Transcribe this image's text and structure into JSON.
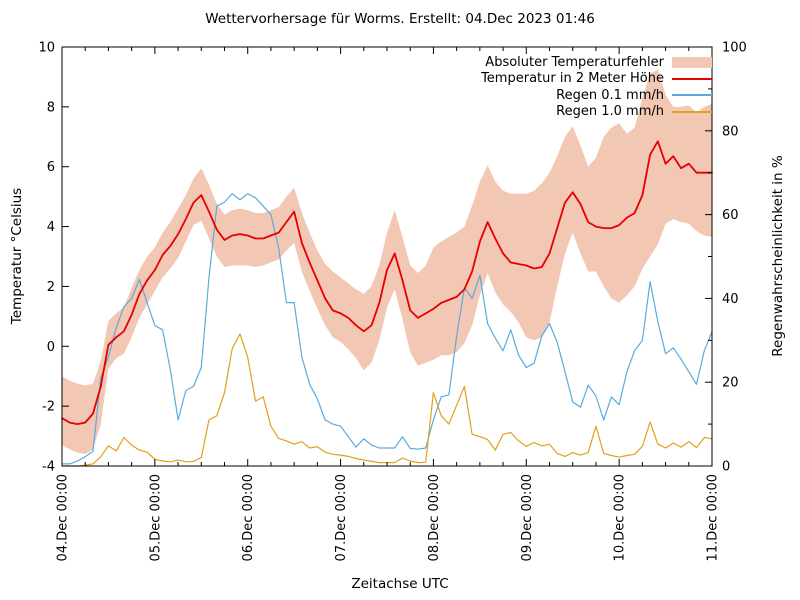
{
  "chart_data": {
    "type": "line",
    "title": "Wettervorhersage für Worms. Erstellt: 04.Dec 2023 01:46",
    "xlabel": "Zeitachse UTC",
    "ylabel": "Temperatur °Celsius",
    "y2label": "Regenwahrscheinlichkeit in %",
    "legend_position": "top-right-inside",
    "grid": "off",
    "x_range_hours": [
      0,
      168
    ],
    "x_major_tick_hours": 24,
    "x_minor_tick_hours": 6,
    "x_tick_labels": [
      "04.Dec 00:00",
      "05.Dec 00:00",
      "06.Dec 00:00",
      "07.Dec 00:00",
      "08.Dec 00:00",
      "09.Dec 00:00",
      "10.Dec 00:00",
      "11.Dec 00:00"
    ],
    "y_range": [
      -4,
      10
    ],
    "y_ticks": [
      -4,
      -2,
      0,
      2,
      4,
      6,
      8,
      10
    ],
    "y2_range": [
      0,
      100
    ],
    "y2_ticks": [
      0,
      20,
      40,
      60,
      80,
      100
    ],
    "y2_minor_tick": 10,
    "sample_step_hours": 2,
    "series": [
      {
        "name": "Absoluter Temperaturfehler",
        "id": "temperature-error-band",
        "type": "band",
        "axis": "y1",
        "color": "#f2c7b3",
        "upper": [
          -1.0,
          -1.15,
          -1.25,
          -1.3,
          -1.25,
          -0.5,
          0.85,
          1.1,
          1.3,
          1.95,
          2.55,
          3.0,
          3.3,
          3.8,
          4.15,
          4.6,
          5.05,
          5.6,
          5.95,
          5.4,
          4.75,
          4.4,
          4.55,
          4.6,
          4.55,
          4.45,
          4.45,
          4.55,
          4.65,
          5.0,
          5.3,
          4.45,
          3.8,
          3.2,
          2.75,
          2.5,
          2.3,
          2.1,
          1.9,
          1.75,
          2.0,
          2.7,
          3.8,
          4.55,
          3.65,
          2.7,
          2.45,
          2.7,
          3.3,
          3.5,
          3.65,
          3.8,
          4.0,
          4.7,
          5.5,
          6.05,
          5.5,
          5.2,
          5.1,
          5.1,
          5.1,
          5.2,
          5.45,
          5.8,
          6.35,
          7.0,
          7.35,
          6.7,
          6.0,
          6.3,
          7.0,
          7.3,
          7.45,
          7.1,
          7.3,
          8.3,
          9.1,
          9.25,
          8.4,
          8.0,
          8.0,
          8.05,
          7.8,
          8.0,
          8.1
        ],
        "lower": [
          -3.3,
          -3.45,
          -3.55,
          -3.6,
          -3.45,
          -2.6,
          -0.75,
          -0.4,
          -0.25,
          0.3,
          0.95,
          1.4,
          1.85,
          2.3,
          2.6,
          2.95,
          3.5,
          4.05,
          4.2,
          3.6,
          3.0,
          2.65,
          2.7,
          2.7,
          2.7,
          2.65,
          2.7,
          2.8,
          2.9,
          3.2,
          3.45,
          2.5,
          1.85,
          1.25,
          0.7,
          0.3,
          0.15,
          -0.1,
          -0.4,
          -0.8,
          -0.55,
          0.2,
          1.3,
          1.9,
          0.9,
          -0.2,
          -0.65,
          -0.55,
          -0.45,
          -0.3,
          -0.3,
          -0.2,
          0.1,
          0.7,
          1.7,
          2.45,
          1.8,
          1.4,
          1.15,
          0.8,
          0.3,
          0.2,
          0.3,
          0.8,
          2.0,
          3.1,
          3.8,
          3.1,
          2.5,
          2.5,
          2.0,
          1.6,
          1.45,
          1.7,
          2.0,
          2.6,
          3.0,
          3.4,
          4.1,
          4.25,
          4.15,
          4.1,
          3.85,
          3.7,
          3.65
        ]
      },
      {
        "name": "Temperatur in 2 Meter Höhe",
        "id": "temperature-line",
        "type": "line",
        "axis": "y1",
        "color": "#e60000",
        "line_width": 1.8,
        "values": [
          -2.4,
          -2.55,
          -2.6,
          -2.55,
          -2.25,
          -1.35,
          0.05,
          0.3,
          0.5,
          1.05,
          1.75,
          2.2,
          2.55,
          3.05,
          3.35,
          3.75,
          4.25,
          4.8,
          5.05,
          4.5,
          3.9,
          3.55,
          3.7,
          3.75,
          3.7,
          3.6,
          3.6,
          3.7,
          3.8,
          4.15,
          4.5,
          3.45,
          2.8,
          2.2,
          1.6,
          1.2,
          1.1,
          0.95,
          0.7,
          0.5,
          0.7,
          1.45,
          2.55,
          3.1,
          2.2,
          1.2,
          0.95,
          1.1,
          1.25,
          1.45,
          1.55,
          1.65,
          1.9,
          2.5,
          3.5,
          4.15,
          3.6,
          3.1,
          2.8,
          2.75,
          2.7,
          2.6,
          2.65,
          3.1,
          3.95,
          4.8,
          5.15,
          4.75,
          4.15,
          4.0,
          3.95,
          3.95,
          4.05,
          4.3,
          4.45,
          5.05,
          6.4,
          6.85,
          6.1,
          6.35,
          5.95,
          6.1,
          5.8,
          5.8,
          5.8
        ]
      },
      {
        "name": "Regen 0.1 mm/h",
        "id": "rain-01-line",
        "type": "line",
        "axis": "y2",
        "color": "#5aabdc",
        "line_width": 1.2,
        "values": [
          0.5,
          0.5,
          1.2,
          2.2,
          3.5,
          21,
          26,
          33,
          38,
          40,
          44.5,
          39,
          33.5,
          32.5,
          23,
          11,
          18,
          19,
          23.5,
          45,
          62,
          63,
          65,
          63.5,
          65,
          64,
          62,
          60,
          52,
          39,
          39,
          26,
          19.5,
          16,
          11,
          10,
          9.5,
          7,
          4.5,
          6.5,
          5,
          4.3,
          4.3,
          4.3,
          7,
          4.2,
          4,
          4.3,
          11,
          16.5,
          17,
          31,
          42.5,
          40,
          45.5,
          34,
          30.5,
          27.5,
          32.5,
          26.5,
          23.5,
          24.5,
          31,
          34,
          29.5,
          22.5,
          15.3,
          14,
          19.3,
          16.7,
          11,
          16.5,
          14.6,
          22.5,
          27.5,
          30,
          44,
          34.5,
          26.8,
          28.2,
          25.5,
          22.5,
          19.5,
          27.5,
          32
        ]
      },
      {
        "name": "Regen 1.0 mm/h",
        "id": "rain-10-line",
        "type": "line",
        "axis": "y2",
        "color": "#e0a11c",
        "line_width": 1.2,
        "values": [
          0,
          0,
          0,
          0.2,
          0.5,
          2.2,
          4.8,
          3.6,
          6.8,
          5,
          3.8,
          3.3,
          1.6,
          1.2,
          1,
          1.4,
          1,
          1.1,
          2,
          11,
          12,
          17.5,
          28,
          31.5,
          26,
          15.5,
          16.5,
          9.5,
          6.6,
          6,
          5.2,
          5.8,
          4.3,
          4.6,
          3.3,
          2.8,
          2.6,
          2.3,
          1.8,
          1.4,
          1.1,
          0.8,
          0.8,
          0.8,
          1.9,
          1.2,
          0.8,
          0.9,
          17.5,
          12,
          10,
          14.5,
          19,
          7.6,
          7,
          6.3,
          3.8,
          7.6,
          8,
          6,
          4.7,
          5.6,
          4.8,
          5.2,
          3,
          2.3,
          3.2,
          2.6,
          3.2,
          9.5,
          3,
          2.5,
          2.1,
          2.5,
          2.8,
          4.7,
          10.5,
          5.2,
          4.3,
          5.5,
          4.5,
          5.8,
          4.4,
          6.8,
          6.5
        ]
      }
    ]
  }
}
